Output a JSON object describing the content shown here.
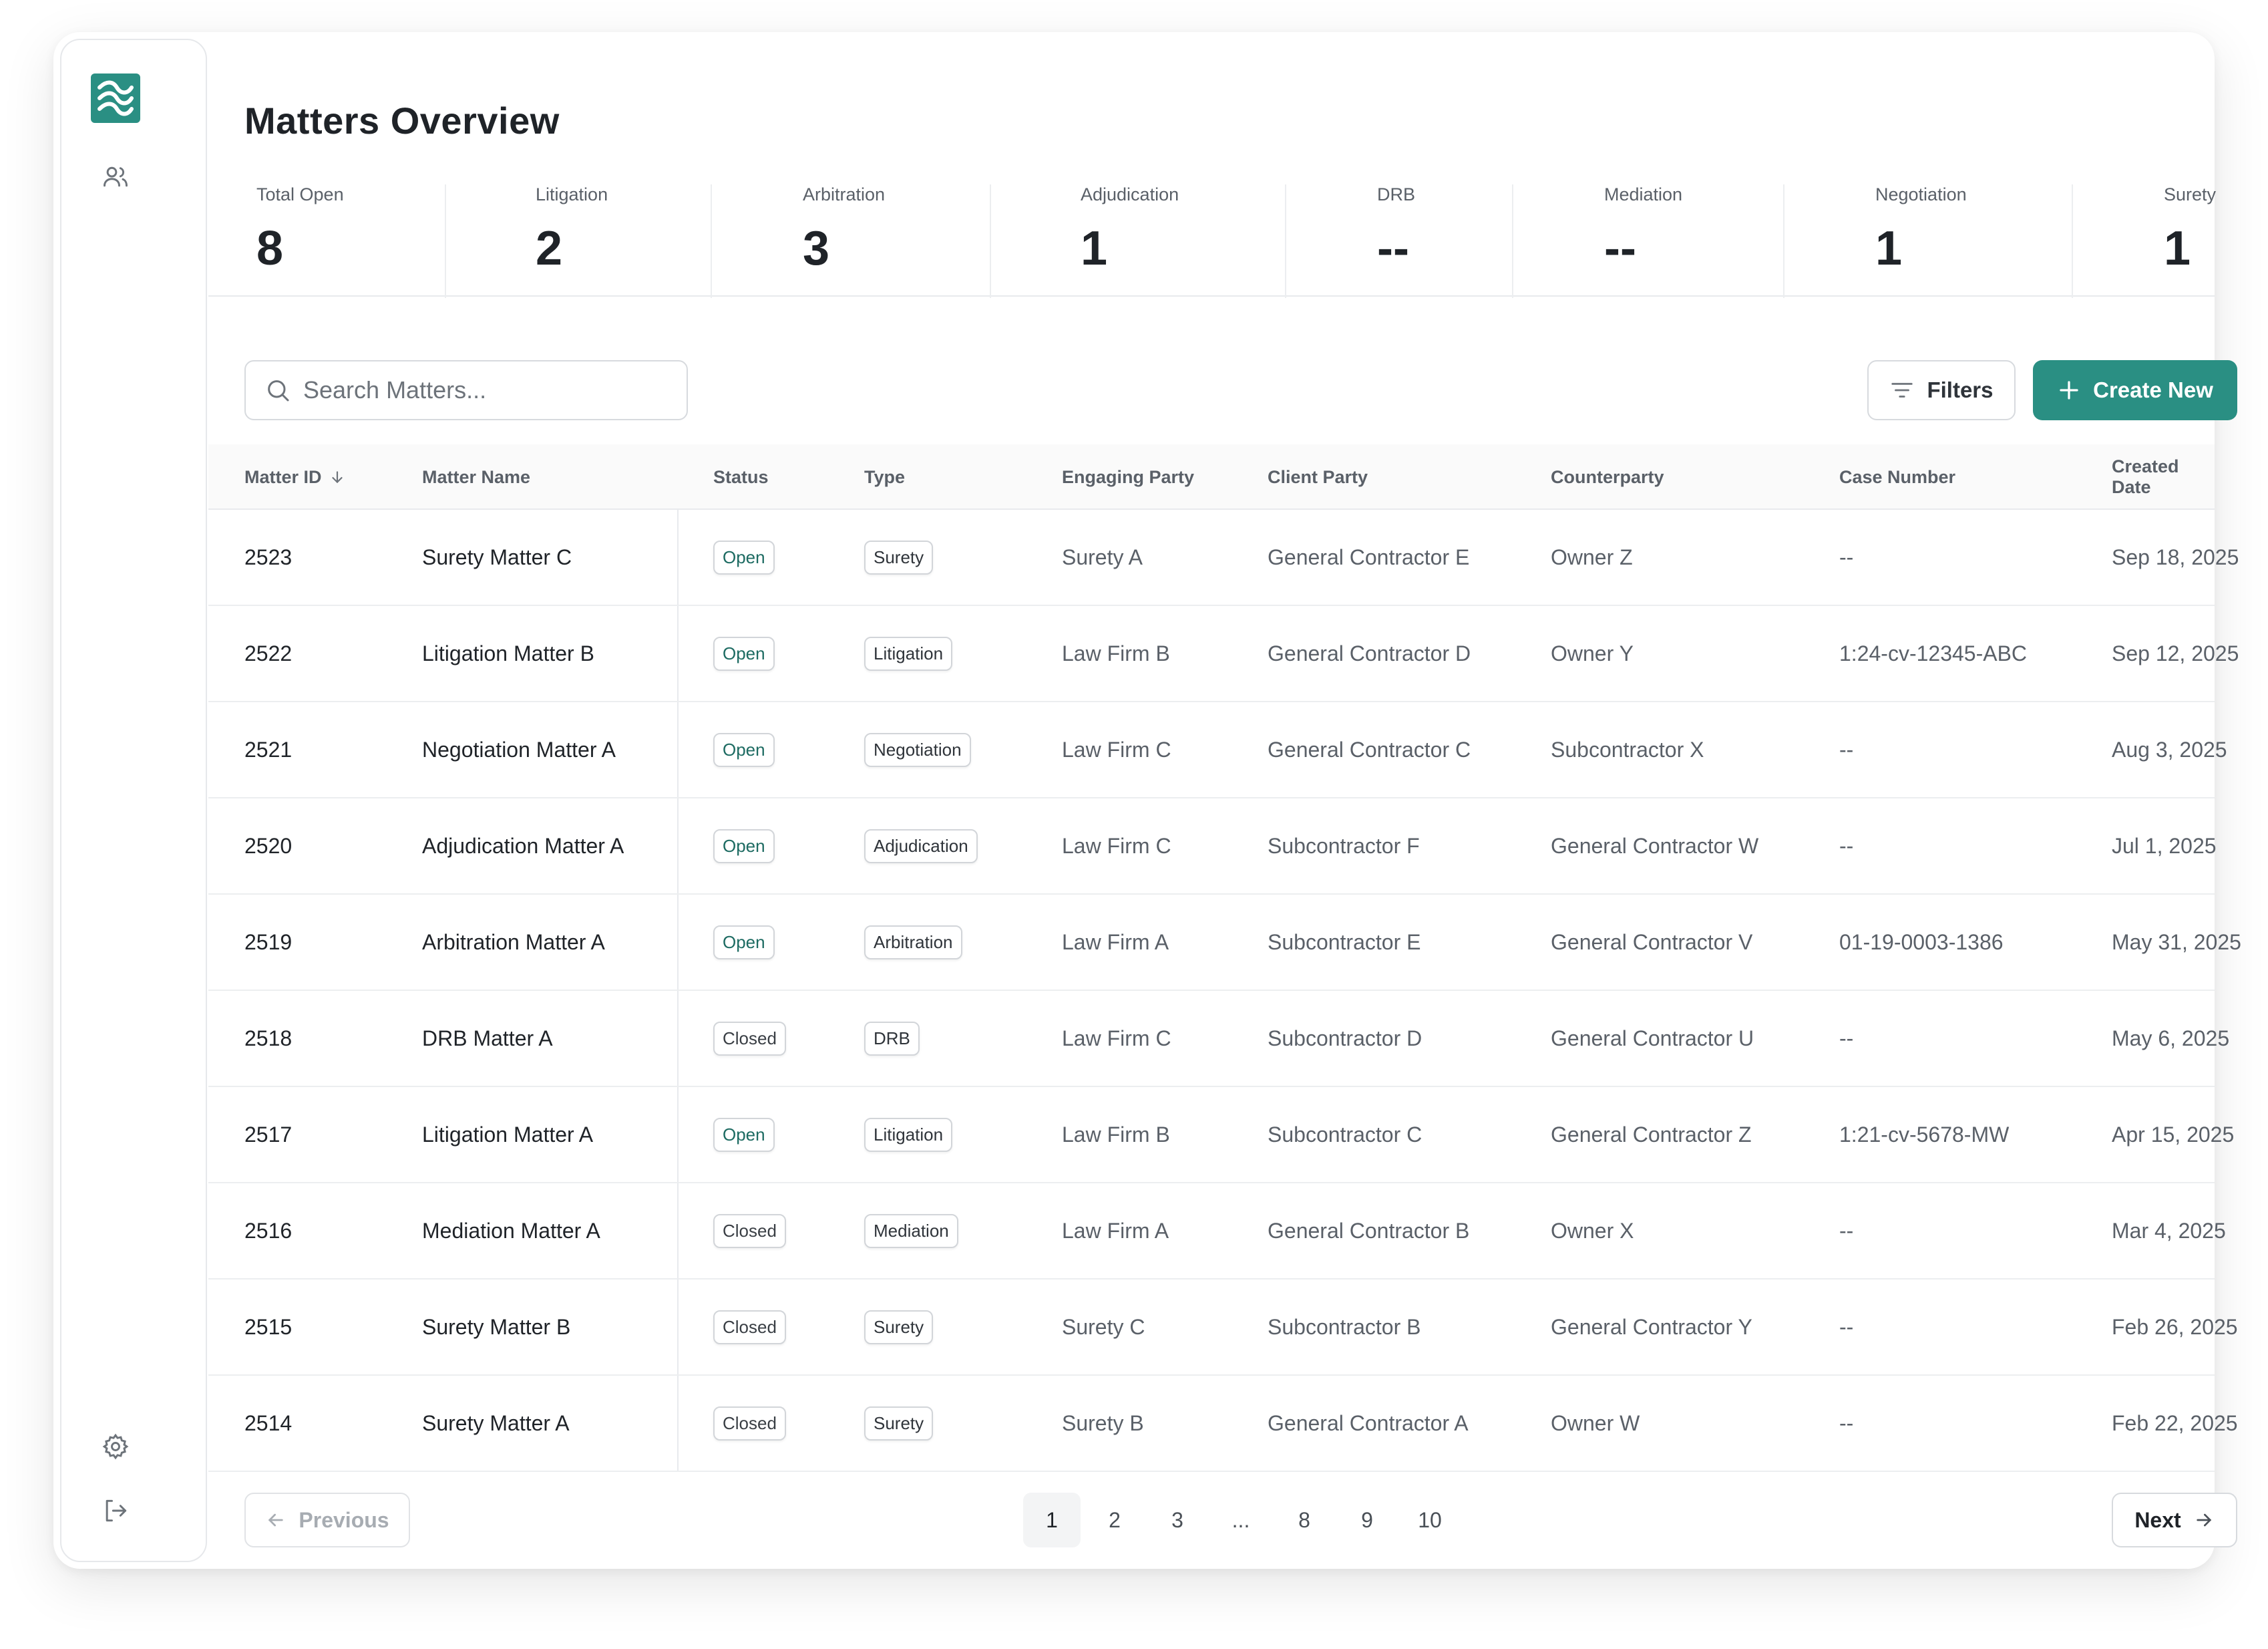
{
  "app": {
    "title": "Matters Overview"
  },
  "colors": {
    "accent": "#2a8f83",
    "border": "#d7dade",
    "muted_text": "#5a6068"
  },
  "sidebar": {
    "icons": [
      "logo-icon",
      "users-icon",
      "gear-icon",
      "logout-icon"
    ]
  },
  "stats": [
    {
      "label": "Total Open",
      "value": "8"
    },
    {
      "label": "Litigation",
      "value": "2"
    },
    {
      "label": "Arbitration",
      "value": "3"
    },
    {
      "label": "Adjudication",
      "value": "1"
    },
    {
      "label": "DRB",
      "value": "--"
    },
    {
      "label": "Mediation",
      "value": "--"
    },
    {
      "label": "Negotiation",
      "value": "1"
    },
    {
      "label": "Surety",
      "value": "1"
    }
  ],
  "toolbar": {
    "search_placeholder": "Search Matters...",
    "filters_label": "Filters",
    "create_label": "Create New"
  },
  "table": {
    "headers": {
      "matter_id": "Matter ID",
      "matter_name": "Matter Name",
      "status": "Status",
      "type": "Type",
      "engaging_party": "Engaging Party",
      "client_party": "Client Party",
      "counterparty": "Counterparty",
      "case_number": "Case Number",
      "created_date": "Created Date"
    },
    "rows": [
      {
        "id": "2523",
        "name": "Surety Matter C",
        "status": "Open",
        "type": "Surety",
        "engaging": "Surety A",
        "client": "General Contractor E",
        "counter": "Owner Z",
        "case": "--",
        "date": "Sep 18, 2025"
      },
      {
        "id": "2522",
        "name": "Litigation Matter B",
        "status": "Open",
        "type": "Litigation",
        "engaging": "Law Firm B",
        "client": "General Contractor D",
        "counter": "Owner Y",
        "case": "1:24-cv-12345-ABC",
        "date": "Sep 12, 2025"
      },
      {
        "id": "2521",
        "name": "Negotiation Matter A",
        "status": "Open",
        "type": "Negotiation",
        "engaging": "Law Firm C",
        "client": "General Contractor C",
        "counter": "Subcontractor X",
        "case": "--",
        "date": "Aug 3, 2025"
      },
      {
        "id": "2520",
        "name": "Adjudication Matter A",
        "status": "Open",
        "type": "Adjudication",
        "engaging": "Law Firm C",
        "client": "Subcontractor F",
        "counter": "General Contractor W",
        "case": "--",
        "date": "Jul 1, 2025"
      },
      {
        "id": "2519",
        "name": "Arbitration Matter A",
        "status": "Open",
        "type": "Arbitration",
        "engaging": "Law Firm A",
        "client": "Subcontractor E",
        "counter": "General Contractor V",
        "case": "01-19-0003-1386",
        "date": "May 31, 2025"
      },
      {
        "id": "2518",
        "name": "DRB Matter A",
        "status": "Closed",
        "type": "DRB",
        "engaging": "Law Firm C",
        "client": "Subcontractor D",
        "counter": "General Contractor U",
        "case": "--",
        "date": "May 6, 2025"
      },
      {
        "id": "2517",
        "name": "Litigation Matter A",
        "status": "Open",
        "type": "Litigation",
        "engaging": "Law Firm B",
        "client": "Subcontractor C",
        "counter": "General Contractor Z",
        "case": "1:21-cv-5678-MW",
        "date": "Apr 15, 2025"
      },
      {
        "id": "2516",
        "name": "Mediation Matter A",
        "status": "Closed",
        "type": "Mediation",
        "engaging": "Law Firm A",
        "client": "General Contractor B",
        "counter": "Owner X",
        "case": "--",
        "date": "Mar 4, 2025"
      },
      {
        "id": "2515",
        "name": "Surety Matter B",
        "status": "Closed",
        "type": "Surety",
        "engaging": "Surety C",
        "client": "Subcontractor B",
        "counter": "General Contractor Y",
        "case": "--",
        "date": "Feb 26, 2025"
      },
      {
        "id": "2514",
        "name": "Surety Matter A",
        "status": "Closed",
        "type": "Surety",
        "engaging": "Surety B",
        "client": "General Contractor A",
        "counter": "Owner W",
        "case": "--",
        "date": "Feb 22, 2025"
      }
    ]
  },
  "pagination": {
    "previous_label": "Previous",
    "next_label": "Next",
    "pages": [
      "1",
      "2",
      "3",
      "...",
      "8",
      "9",
      "10"
    ],
    "current": "1"
  }
}
